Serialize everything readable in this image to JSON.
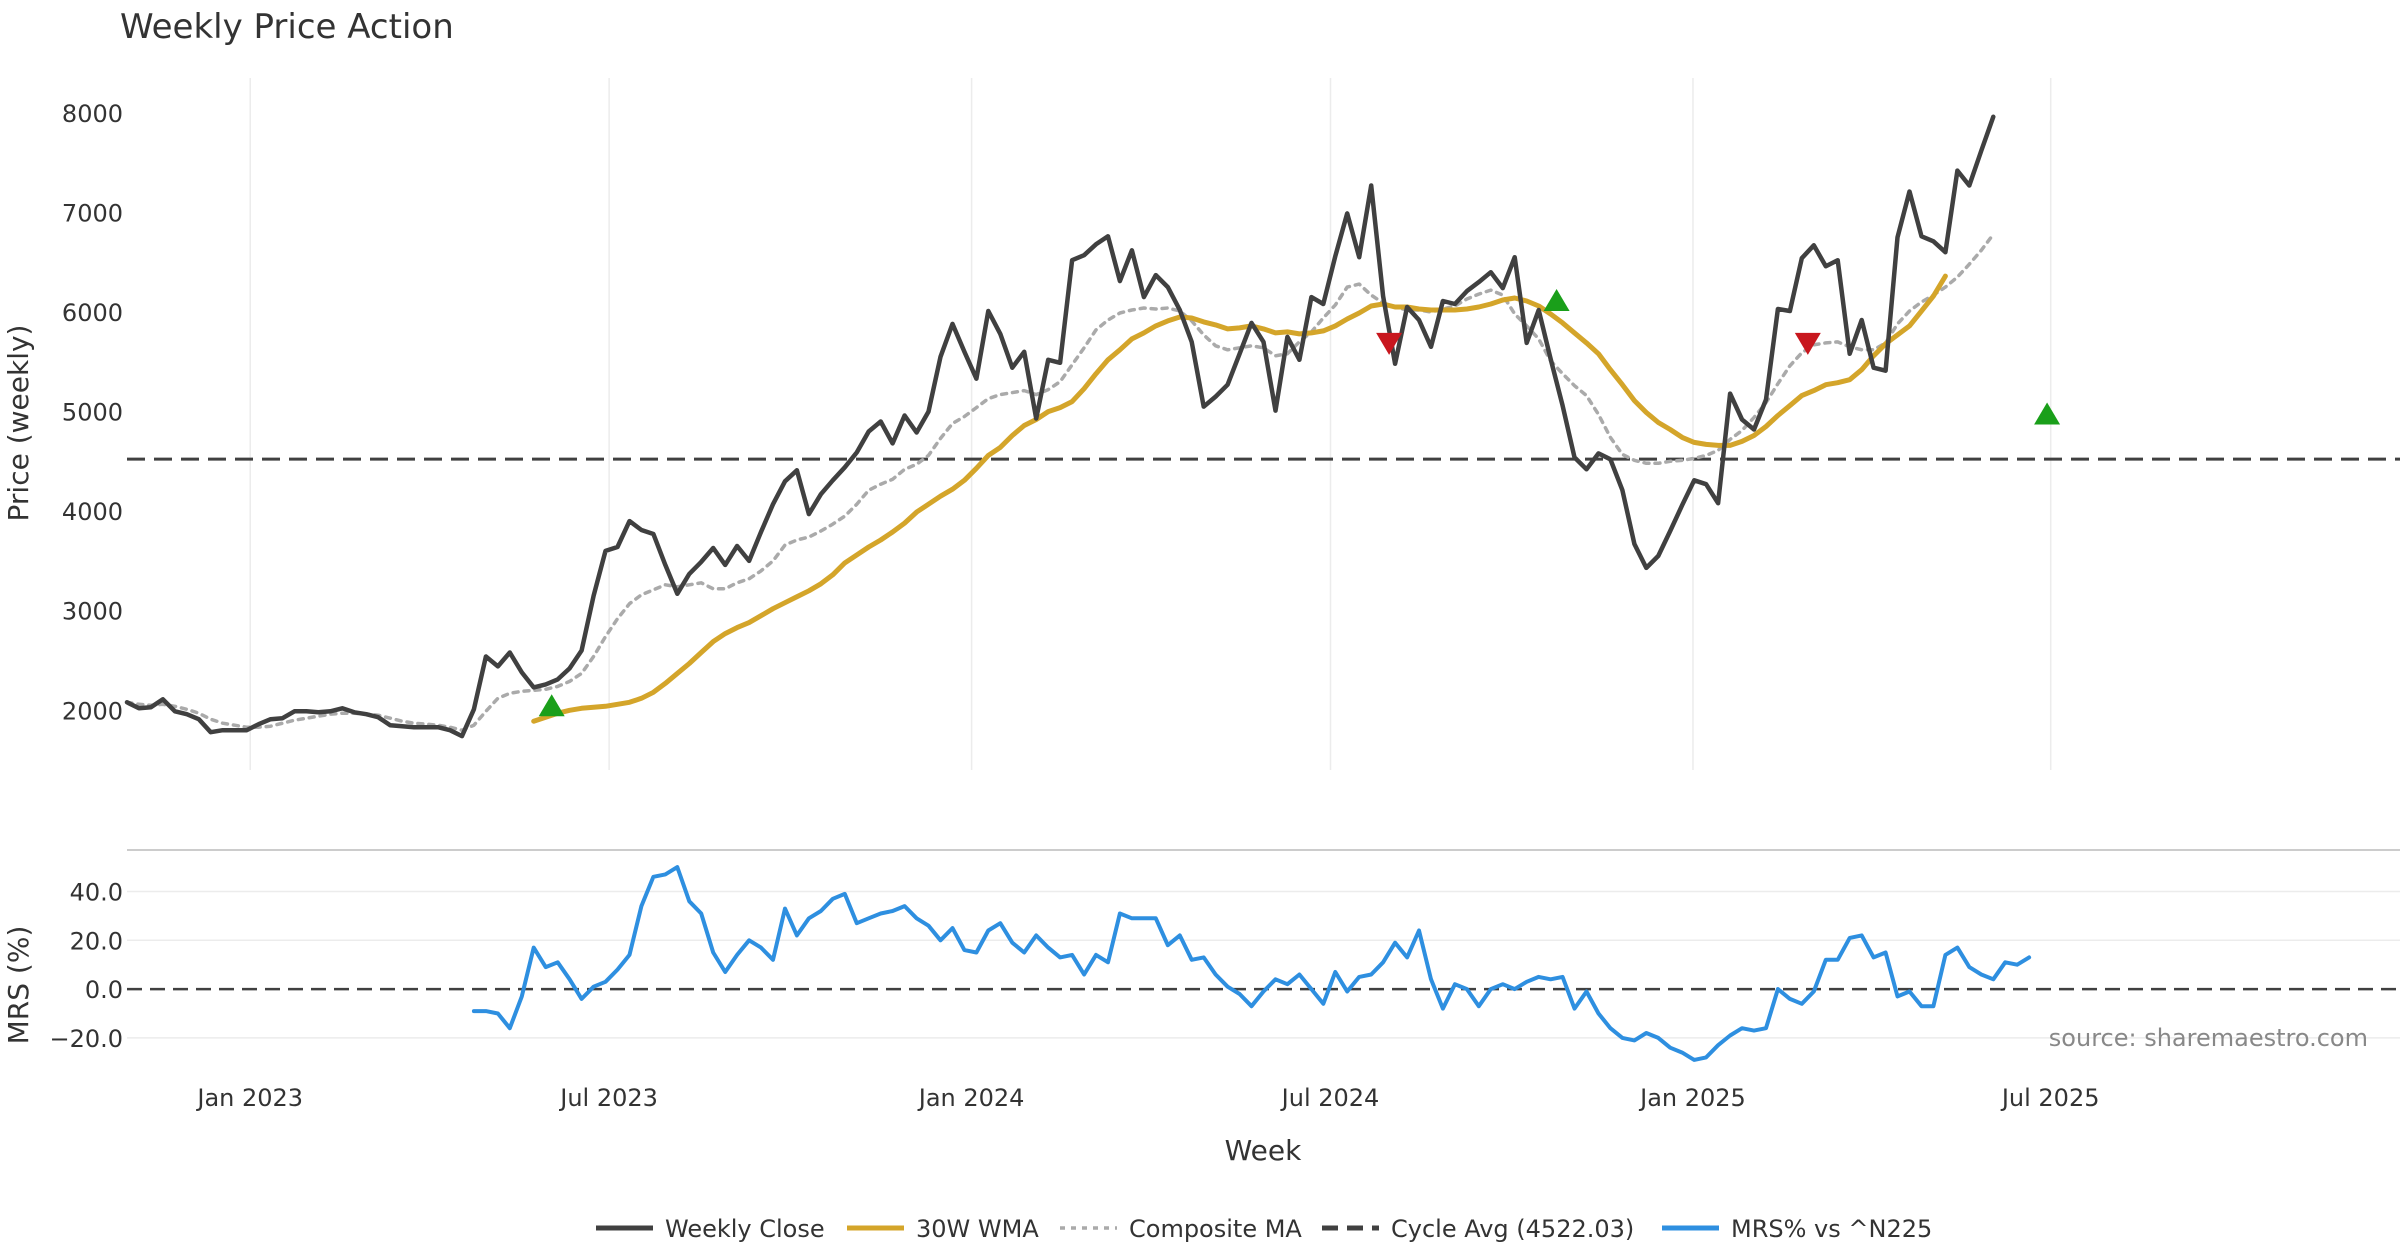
{
  "chart_data": {
    "title": "Weekly Price Action",
    "source": "source: sharemaestro.com",
    "x_axis": {
      "label": "Week",
      "range_weeks": [
        0,
        190
      ],
      "ticks": [
        {
          "label": "Jan 2023",
          "week": 10.3
        },
        {
          "label": "Jul 2023",
          "week": 40.3
        },
        {
          "label": "Jan 2024",
          "week": 70.6
        },
        {
          "label": "Jul 2024",
          "week": 100.6
        },
        {
          "label": "Jan 2025",
          "week": 130.9
        },
        {
          "label": "Jul 2025",
          "week": 160.8
        }
      ]
    },
    "price_panel": {
      "type": "line",
      "ylabel": "Price (weekly)",
      "ylim": [
        1400,
        8350
      ],
      "yticks": [
        2000,
        3000,
        4000,
        5000,
        6000,
        7000,
        8000
      ],
      "cycle_avg": 4522.03,
      "series": [
        {
          "name": "Weekly Close",
          "color": "#404040",
          "start_week": 0,
          "values": [
            2080,
            2020,
            2030,
            2110,
            1990,
            1960,
            1910,
            1780,
            1800,
            1800,
            1800,
            1860,
            1910,
            1920,
            1990,
            1990,
            1980,
            1990,
            2020,
            1980,
            1960,
            1930,
            1850,
            1840,
            1830,
            1830,
            1830,
            1800,
            1740,
            2010,
            2540,
            2440,
            2580,
            2380,
            2230,
            2260,
            2310,
            2420,
            2600,
            3150,
            3600,
            3640,
            3900,
            3810,
            3770,
            3460,
            3170,
            3370,
            3490,
            3630,
            3460,
            3650,
            3500,
            3790,
            4070,
            4300,
            4410,
            3970,
            4170,
            4310,
            4440,
            4590,
            4800,
            4900,
            4680,
            4960,
            4790,
            5000,
            5550,
            5880,
            5600,
            5330,
            6010,
            5780,
            5440,
            5600,
            4930,
            5520,
            5490,
            6520,
            6570,
            6680,
            6760,
            6310,
            6620,
            6150,
            6370,
            6250,
            6020,
            5700,
            5050,
            5150,
            5270,
            5580,
            5890,
            5700,
            5010,
            5750,
            5520,
            6150,
            6080,
            6560,
            6990,
            6550,
            7270,
            6160,
            5480,
            6050,
            5920,
            5650,
            6110,
            6080,
            6210,
            6300,
            6400,
            6240,
            6550,
            5690,
            6020,
            5530,
            5060,
            4540,
            4420,
            4580,
            4520,
            4210,
            3670,
            3430,
            3550,
            3800,
            4060,
            4310,
            4270,
            4080,
            5180,
            4920,
            4820,
            5120,
            6030,
            6010,
            6540,
            6670,
            6460,
            6520,
            5580,
            5920,
            5440,
            5410,
            6750,
            7210,
            6760,
            6710,
            6600,
            7420,
            7270,
            7620,
            7960
          ]
        },
        {
          "name": "30W WMA",
          "color": "#d4a52a",
          "start_week": 34,
          "values": [
            1890,
            1930,
            1970,
            2000,
            2020,
            2030,
            2040,
            2060,
            2080,
            2120,
            2180,
            2270,
            2370,
            2470,
            2580,
            2690,
            2770,
            2830,
            2880,
            2950,
            3020,
            3080,
            3140,
            3200,
            3270,
            3360,
            3480,
            3560,
            3640,
            3710,
            3790,
            3880,
            3990,
            4070,
            4150,
            4220,
            4310,
            4430,
            4560,
            4640,
            4760,
            4860,
            4920,
            5000,
            5040,
            5100,
            5230,
            5380,
            5520,
            5620,
            5730,
            5790,
            5860,
            5910,
            5950,
            5940,
            5900,
            5870,
            5830,
            5840,
            5860,
            5830,
            5790,
            5800,
            5780,
            5790,
            5810,
            5860,
            5930,
            5990,
            6060,
            6080,
            6050,
            6050,
            6030,
            6020,
            6020,
            6020,
            6030,
            6050,
            6080,
            6120,
            6140,
            6110,
            6060,
            5980,
            5890,
            5790,
            5690,
            5580,
            5420,
            5270,
            5110,
            4990,
            4890,
            4820,
            4740,
            4690,
            4670,
            4660,
            4660,
            4700,
            4760,
            4850,
            4960,
            5060,
            5160,
            5210,
            5270,
            5290,
            5320,
            5420,
            5560,
            5680,
            5770,
            5860,
            6010,
            6160,
            6360
          ]
        },
        {
          "name": "Composite MA",
          "color": "#aaaaaa",
          "start_week": 0,
          "values": [
            2080,
            2060,
            2050,
            2060,
            2040,
            2010,
            1970,
            1910,
            1870,
            1850,
            1830,
            1830,
            1840,
            1870,
            1900,
            1920,
            1940,
            1960,
            1970,
            1970,
            1960,
            1950,
            1920,
            1890,
            1870,
            1860,
            1850,
            1830,
            1800,
            1850,
            1990,
            2120,
            2170,
            2190,
            2200,
            2210,
            2240,
            2290,
            2370,
            2540,
            2740,
            2920,
            3070,
            3160,
            3210,
            3260,
            3240,
            3260,
            3280,
            3220,
            3220,
            3280,
            3320,
            3400,
            3500,
            3660,
            3710,
            3740,
            3800,
            3870,
            3950,
            4070,
            4210,
            4270,
            4320,
            4420,
            4470,
            4560,
            4730,
            4880,
            4950,
            5040,
            5130,
            5170,
            5190,
            5210,
            5170,
            5220,
            5300,
            5470,
            5640,
            5820,
            5920,
            5990,
            6020,
            6040,
            6030,
            6040,
            6010,
            5910,
            5770,
            5660,
            5620,
            5640,
            5660,
            5640,
            5560,
            5580,
            5700,
            5800,
            5940,
            6070,
            6250,
            6280,
            6170,
            6090,
            6050,
            6020,
            6020,
            6000,
            6030,
            6060,
            6130,
            6180,
            6220,
            6170,
            5980,
            5860,
            5730,
            5510,
            5380,
            5260,
            5160,
            4970,
            4740,
            4570,
            4510,
            4480,
            4480,
            4500,
            4510,
            4530,
            4560,
            4610,
            4720,
            4810,
            4940,
            5090,
            5280,
            5460,
            5590,
            5670,
            5690,
            5700,
            5650,
            5620,
            5620,
            5690,
            5880,
            6010,
            6100,
            6170,
            6250,
            6350,
            6480,
            6620,
            6780
          ]
        }
      ],
      "signals": [
        {
          "type": "buy",
          "week": 35.5,
          "value": 2050
        },
        {
          "type": "buy",
          "week": 119.5,
          "value": 6120
        },
        {
          "type": "buy",
          "week": 160.5,
          "value": 4980
        },
        {
          "type": "sell",
          "week": 105.5,
          "value": 5680
        },
        {
          "type": "sell",
          "week": 140.5,
          "value": 5680
        }
      ]
    },
    "mrs_panel": {
      "type": "line",
      "ylabel": "MRS (%)",
      "ylim": [
        -27,
        57
      ],
      "yticks": [
        -20.0,
        0.0,
        20.0,
        40.0
      ],
      "ytick_labels": [
        "−20.0",
        "0.0",
        "20.0",
        "40.0"
      ],
      "series": [
        {
          "name": "MRS% vs ^N225",
          "color": "#2e8fe0",
          "start_week": 29,
          "values": [
            -9,
            -9,
            -10,
            -16,
            -3,
            17,
            9,
            11,
            4,
            -4,
            1,
            3,
            8,
            14,
            34,
            46,
            47,
            50,
            36,
            31,
            15,
            7,
            14,
            20,
            17,
            12,
            33,
            22,
            29,
            32,
            37,
            39,
            27,
            29,
            31,
            32,
            34,
            29,
            26,
            20,
            25,
            16,
            15,
            24,
            27,
            19,
            15,
            22,
            17,
            13,
            14,
            6,
            14,
            11,
            31,
            29,
            29,
            29,
            18,
            22,
            12,
            13,
            6,
            1,
            -2,
            -7,
            -1,
            4,
            2,
            6,
            0,
            -6,
            7,
            -1,
            5,
            6,
            11,
            19,
            13,
            24,
            4,
            -8,
            2,
            0,
            -7,
            0,
            2,
            0,
            3,
            5,
            4,
            5,
            -8,
            -1,
            -10,
            -16,
            -20,
            -21,
            -18,
            -20,
            -24,
            -26,
            -29,
            -28,
            -23,
            -19,
            -16,
            -17,
            -16,
            0,
            -4,
            -6,
            -1,
            12,
            12,
            21,
            22,
            13,
            15,
            -3,
            -1,
            -7,
            -7,
            14,
            17,
            9,
            6,
            4,
            11,
            10,
            13
          ]
        }
      ]
    },
    "legend": {
      "placement": "bottom-center",
      "entries": [
        {
          "label": "Weekly Close",
          "color": "#404040",
          "style": "solid"
        },
        {
          "label": "30W WMA",
          "color": "#d4a52a",
          "style": "solid"
        },
        {
          "label": "Composite MA",
          "color": "#aaaaaa",
          "style": "dotted"
        },
        {
          "label": "Cycle Avg (4522.03)",
          "color": "#404040",
          "style": "dashed"
        },
        {
          "label": "MRS% vs ^N225",
          "color": "#2e8fe0",
          "style": "solid"
        }
      ]
    }
  }
}
